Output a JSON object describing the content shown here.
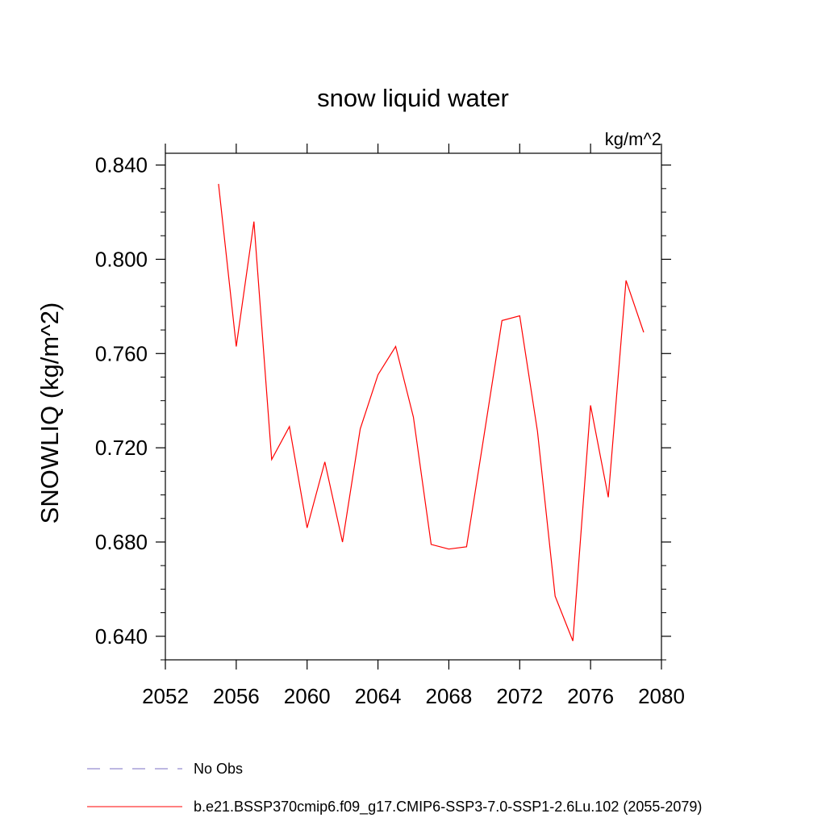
{
  "chart_data": {
    "type": "line",
    "title": "snow liquid water",
    "units_label": "kg/m^2",
    "ylabel": "SNOWLIQ  (kg/m^2)",
    "xlabel": "",
    "xlim": [
      2052,
      2080
    ],
    "ylim": [
      0.63,
      0.845
    ],
    "xticks": [
      2052,
      2056,
      2060,
      2064,
      2068,
      2072,
      2076,
      2080
    ],
    "xtick_labels": [
      "2052",
      "2056",
      "2060",
      "2064",
      "2068",
      "2072",
      "2076",
      "2080"
    ],
    "yticks": [
      0.64,
      0.68,
      0.72,
      0.76,
      0.8,
      0.84
    ],
    "ytick_labels": [
      "0.640",
      "0.680",
      "0.720",
      "0.760",
      "0.800",
      "0.840"
    ],
    "grid": false,
    "legend_position": "bottom-left",
    "series": [
      {
        "name": "No Obs",
        "color": "#7b6fc4",
        "dash": "dashed",
        "x": [],
        "y": []
      },
      {
        "name": "b.e21.BSSP370cmip6.f09_g17.CMIP6-SSP3-7.0-SSP1-2.6Lu.102 (2055-2079)",
        "color": "#ff0000",
        "dash": "solid",
        "x": [
          2055,
          2056,
          2057,
          2058,
          2059,
          2060,
          2061,
          2062,
          2063,
          2064,
          2065,
          2066,
          2067,
          2068,
          2069,
          2070,
          2071,
          2072,
          2073,
          2074,
          2075,
          2076,
          2077,
          2078,
          2079
        ],
        "y": [
          0.832,
          0.763,
          0.816,
          0.715,
          0.729,
          0.686,
          0.714,
          0.68,
          0.728,
          0.751,
          0.763,
          0.733,
          0.679,
          0.677,
          0.678,
          0.726,
          0.774,
          0.776,
          0.727,
          0.657,
          0.638,
          0.738,
          0.699,
          0.791,
          0.769
        ]
      }
    ]
  }
}
